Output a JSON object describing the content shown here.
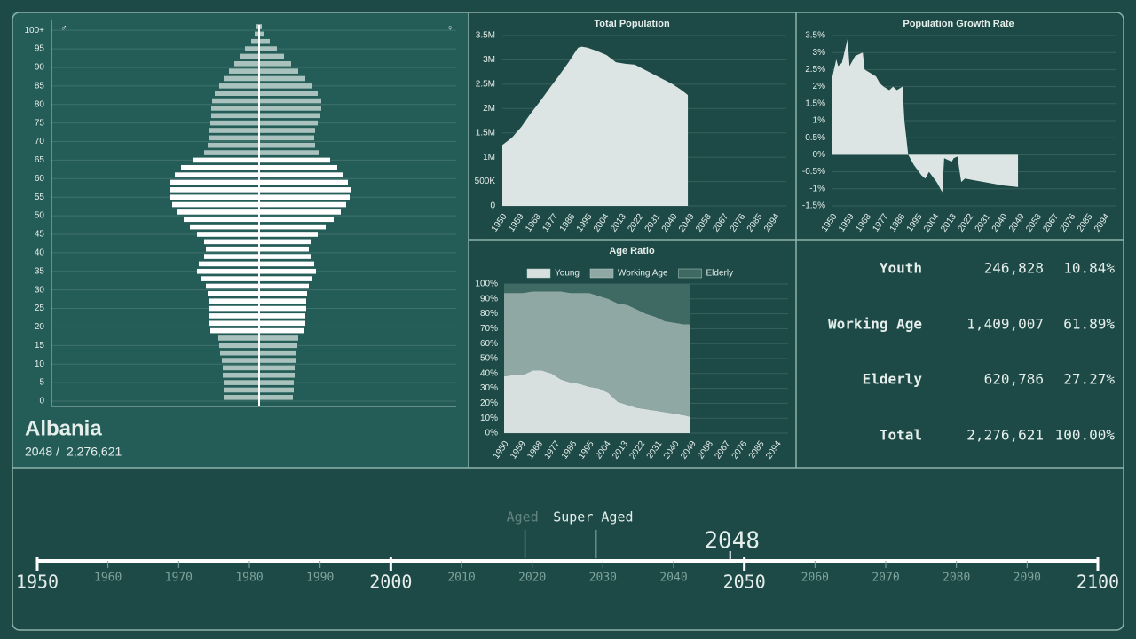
{
  "header": {
    "country": "Albania",
    "year": "2048",
    "separator": "/",
    "population": "2,276,621"
  },
  "chart_data": [
    {
      "type": "pyramid",
      "ages": [
        0,
        2,
        4,
        6,
        8,
        10,
        12,
        14,
        16,
        18,
        20,
        22,
        24,
        26,
        28,
        30,
        32,
        34,
        36,
        38,
        40,
        42,
        44,
        46,
        48,
        50,
        52,
        54,
        56,
        58,
        60,
        62,
        64,
        66,
        68,
        70,
        72,
        74,
        76,
        78,
        80,
        82,
        84,
        86,
        88,
        90,
        92,
        94,
        96,
        98,
        100
      ],
      "series": [
        {
          "name": "♂",
          "values": [
            10000,
            10000,
            10000,
            10250,
            10250,
            10500,
            11000,
            11250,
            11500,
            13750,
            14250,
            14250,
            14250,
            14250,
            14500,
            15000,
            16250,
            17500,
            17000,
            15500,
            15000,
            15500,
            17500,
            19500,
            21250,
            23000,
            24500,
            25000,
            25250,
            25000,
            23750,
            22000,
            18750,
            15500,
            14500,
            14000,
            14000,
            13750,
            13500,
            13500,
            13250,
            12500,
            11250,
            10000,
            8500,
            7000,
            5500,
            4000,
            2250,
            1250,
            750
          ]
        },
        {
          "name": "♀",
          "values": [
            9500,
            9750,
            9750,
            10000,
            10000,
            10250,
            10500,
            10750,
            11000,
            12500,
            13000,
            13000,
            13250,
            13250,
            13500,
            14000,
            15000,
            16000,
            15500,
            14500,
            14000,
            14500,
            16500,
            18750,
            21000,
            23000,
            24500,
            25500,
            25750,
            25000,
            23500,
            22000,
            20000,
            17000,
            15750,
            15500,
            15750,
            16500,
            17250,
            17500,
            17500,
            16500,
            15000,
            13000,
            11000,
            9000,
            7000,
            5000,
            3000,
            1500,
            750
          ]
        }
      ],
      "xlim": [
        0,
        30000
      ],
      "ylim": [
        0,
        101
      ],
      "yticks": [
        0,
        5,
        10,
        15,
        20,
        25,
        30,
        35,
        40,
        45,
        50,
        55,
        60,
        65,
        70,
        75,
        80,
        85,
        90,
        95,
        {
          "value": 100,
          "label": "100+"
        }
      ],
      "color_breaks": [
        17,
        65
      ],
      "colors": [
        "#a9c2bd",
        "#ffffff",
        "#a9c2bd"
      ],
      "grid": true
    },
    {
      "type": "area",
      "title": "Total Population",
      "color": "#dde5e4",
      "x": [
        1950,
        1955,
        1960,
        1965,
        1970,
        1975,
        1980,
        1985,
        1990,
        1992,
        1995,
        2000,
        2005,
        2010,
        2015,
        2020,
        2025,
        2030,
        2035,
        2040,
        2045,
        2048
      ],
      "values": [
        1250000,
        1400000,
        1620000,
        1900000,
        2150000,
        2420000,
        2680000,
        2950000,
        3250000,
        3270000,
        3250000,
        3180000,
        3100000,
        2950000,
        2920000,
        2900000,
        2800000,
        2700000,
        2600000,
        2500000,
        2370000,
        2276621
      ],
      "xlim": [
        1950,
        2100
      ],
      "xticks": [
        1950,
        1959,
        1968,
        1977,
        1986,
        1995,
        2004,
        2013,
        2022,
        2031,
        2040,
        2049,
        2058,
        2067,
        2076,
        2085,
        2094
      ],
      "ylim": [
        0,
        3500000
      ],
      "yticks": [
        0,
        {
          "value": 500000,
          "label": "500K"
        },
        {
          "value": 1000000,
          "label": "1M"
        },
        {
          "value": 1500000,
          "label": "1.5M"
        },
        {
          "value": 2000000,
          "label": "2M"
        },
        {
          "value": 2500000,
          "label": "2.5M"
        },
        {
          "value": 3000000,
          "label": "3M"
        },
        {
          "value": 3500000,
          "label": "3.5M"
        }
      ],
      "grid": true
    },
    {
      "type": "area",
      "title": "Population Growth Rate",
      "color": "#dde5e4",
      "x": [
        1950,
        1952,
        1953,
        1955,
        1958,
        1959,
        1962,
        1966,
        1967,
        1970,
        1973,
        1975,
        1977,
        1980,
        1982,
        1984,
        1987,
        1988,
        1990,
        1993,
        1997,
        1999,
        2001,
        2005,
        2008,
        2009,
        2013,
        2014,
        2016,
        2018,
        2020,
        2025,
        2030,
        2040,
        2048
      ],
      "values": [
        2.3,
        2.8,
        2.6,
        2.7,
        3.4,
        2.6,
        2.9,
        3.0,
        2.5,
        2.4,
        2.3,
        2.1,
        2.0,
        1.9,
        2.0,
        1.9,
        2.0,
        1.0,
        0,
        -0.3,
        -0.6,
        -0.7,
        -0.5,
        -0.8,
        -1.1,
        -0.1,
        -0.2,
        -0.1,
        -0.05,
        -0.8,
        -0.7,
        -0.75,
        -0.8,
        -0.9,
        -0.95
      ],
      "xlim": [
        1950,
        2100
      ],
      "xticks": [
        1950,
        1959,
        1968,
        1977,
        1986,
        1995,
        2004,
        2013,
        2022,
        2031,
        2040,
        2049,
        2058,
        2067,
        2076,
        2085,
        2094
      ],
      "ylim": [
        -1.5,
        3.5
      ],
      "yticks": [
        {
          "value": -1.5,
          "label": "-1.5%"
        },
        {
          "value": -1,
          "label": "-1%"
        },
        {
          "value": -0.5,
          "label": "-0.5%"
        },
        {
          "value": 0,
          "label": "0%"
        },
        {
          "value": 0.5,
          "label": "0.5%"
        },
        {
          "value": 1,
          "label": "1%"
        },
        {
          "value": 1.5,
          "label": "1.5%"
        },
        {
          "value": 2,
          "label": "2%"
        },
        {
          "value": 2.5,
          "label": "2.5%"
        },
        {
          "value": 3,
          "label": "3%"
        },
        {
          "value": 3.5,
          "label": "3.5%"
        }
      ],
      "grid": true
    },
    {
      "type": "stacked_area",
      "title": "Age Ratio",
      "x": [
        1950,
        1955,
        1960,
        1965,
        1970,
        1975,
        1980,
        1985,
        1990,
        1995,
        2000,
        2005,
        2010,
        2015,
        2020,
        2025,
        2030,
        2035,
        2040,
        2045,
        2048
      ],
      "series": [
        {
          "name": "Young",
          "color": "#d8e0df",
          "values": [
            38,
            39,
            39,
            42,
            42,
            40,
            36,
            34,
            33,
            31,
            30,
            27,
            21,
            19,
            17,
            16,
            15,
            14,
            13,
            12,
            11
          ]
        },
        {
          "name": "Working Age",
          "color": "#8fa8a4",
          "values": [
            56,
            55,
            55,
            53,
            53,
            55,
            59,
            60,
            61,
            63,
            62,
            63,
            66,
            67,
            66,
            64,
            63,
            61,
            61,
            61,
            62
          ]
        },
        {
          "name": "Elderly",
          "color": "#3f6a64",
          "values": [
            6,
            6,
            6,
            5,
            5,
            5,
            5,
            6,
            6,
            6,
            8,
            10,
            13,
            14,
            17,
            20,
            22,
            25,
            26,
            27,
            27
          ]
        }
      ],
      "xlim": [
        1950,
        2100
      ],
      "xticks": [
        1950,
        1959,
        1968,
        1977,
        1986,
        1995,
        2004,
        2013,
        2022,
        2031,
        2040,
        2049,
        2058,
        2067,
        2076,
        2085,
        2094
      ],
      "ylim": [
        0,
        100
      ],
      "yticks": [
        {
          "value": 0,
          "label": "0%"
        },
        {
          "value": 10,
          "label": "10%"
        },
        {
          "value": 20,
          "label": "20%"
        },
        {
          "value": 30,
          "label": "30%"
        },
        {
          "value": 40,
          "label": "40%"
        },
        {
          "value": 50,
          "label": "50%"
        },
        {
          "value": 60,
          "label": "60%"
        },
        {
          "value": 70,
          "label": "70%"
        },
        {
          "value": 80,
          "label": "80%"
        },
        {
          "value": 90,
          "label": "90%"
        },
        {
          "value": 100,
          "label": "100%"
        }
      ],
      "grid": true,
      "legend": "top"
    }
  ],
  "stats": {
    "rows": [
      {
        "label": "Youth",
        "value": "246,828",
        "percent": "10.84%"
      },
      {
        "label": "Working Age",
        "value": "1,409,007",
        "percent": "61.89%"
      },
      {
        "label": "Elderly",
        "value": "620,786",
        "percent": "27.27%"
      },
      {
        "label": "Total",
        "value": "2,276,621",
        "percent": "100.00%"
      }
    ]
  },
  "timeline": {
    "xlim": [
      1950,
      2100
    ],
    "major_ticks": [
      1950,
      2000,
      2050,
      2100
    ],
    "minor_ticks": [
      1960,
      1970,
      1980,
      1990,
      2010,
      2020,
      2030,
      2040,
      2060,
      2070,
      2080,
      2090
    ],
    "markers": [
      {
        "label": "Aged",
        "year": 2019,
        "active": false
      },
      {
        "label": "Super Aged",
        "year": 2029,
        "active": true
      }
    ],
    "current": 2048
  }
}
